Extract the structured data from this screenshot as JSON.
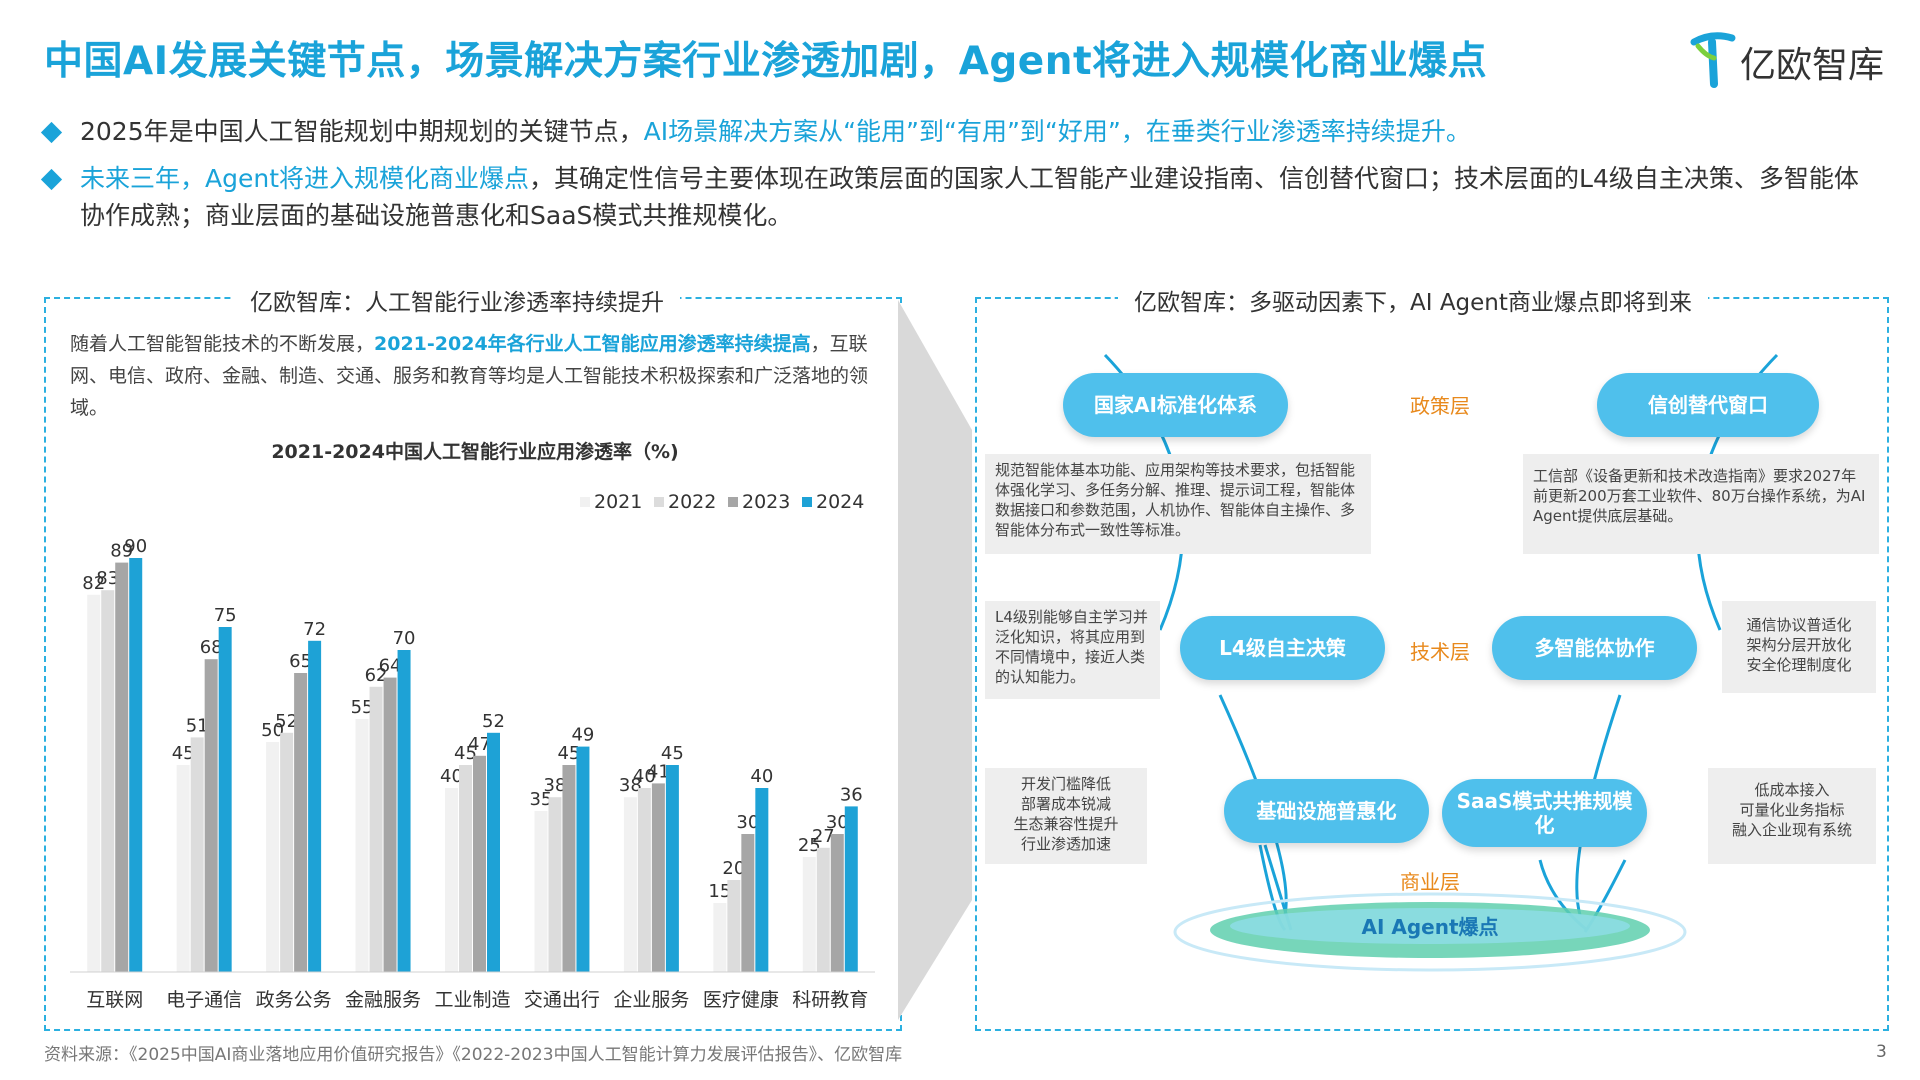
{
  "header": {
    "title": "中国AI发展关键节点，场景解决方案行业渗透加剧，Agent将进入规模化商业爆点",
    "logo_text": "亿欧智库"
  },
  "bullets": [
    {
      "pre": "2025年是中国人工智能规划中期规划的关键节点，",
      "highlight": "AI场景解决方案从“能用”到“有用”到“好用”，在垂类行业渗透率持续提升。",
      "post": ""
    },
    {
      "pre": "",
      "highlight": "未来三年，Agent将进入规模化商业爆点",
      "post": "，其确定性信号主要体现在政策层面的国家人工智能产业建设指南、信创替代窗口；技术层面的L4级自主决策、多智能体协作成熟；商业层面的基础设施普惠化和SaaS模式共推规模化。"
    }
  ],
  "left_panel": {
    "title": "亿欧智库：人工智能行业渗透率持续提升",
    "intro_pre": "随着人工智能智能技术的不断发展，",
    "intro_highlight": "2021-2024年各行业人工智能应用渗透率持续提高",
    "intro_post": "，互联网、电信、政府、金融、制造、交通、服务和教育等均是人工智能技术积极探索和广泛落地的领域。"
  },
  "chart_data": {
    "type": "bar",
    "title": "2021-2024中国人工智能行业应用渗透率（%)",
    "categories": [
      "互联网",
      "电子通信",
      "政务公务",
      "金融服务",
      "工业制造",
      "交通出行",
      "企业服务",
      "医疗健康",
      "科研教育"
    ],
    "series": [
      {
        "name": "2021",
        "color": "#f1f1f1",
        "values": [
          82,
          45,
          50,
          55,
          40,
          35,
          38,
          15,
          25
        ]
      },
      {
        "name": "2022",
        "color": "#dcdcdc",
        "values": [
          83,
          51,
          52,
          62,
          45,
          38,
          40,
          20,
          27
        ]
      },
      {
        "name": "2023",
        "color": "#a6a6a6",
        "values": [
          89,
          68,
          65,
          64,
          47,
          45,
          41,
          30,
          30
        ]
      },
      {
        "name": "2024",
        "color": "#1ea2d6",
        "values": [
          90,
          75,
          72,
          70,
          52,
          49,
          45,
          40,
          36
        ]
      }
    ],
    "ylim": [
      0,
      100
    ],
    "legend": "top-right",
    "grid": false
  },
  "right_panel": {
    "title": "亿欧智库：多驱动因素下，AI Agent商业爆点即将到来",
    "layers": {
      "policy": "政策层",
      "tech": "技术层",
      "business": "商业层"
    },
    "nodes": {
      "national": "国家AI标准化体系",
      "xinchuang": "信创替代窗口",
      "l4": "L4级自主决策",
      "multi_agent": "多智能体协作",
      "infra": "基础设施普惠化",
      "saas": "SaaS模式共推规模化"
    },
    "notes": {
      "national": "规范智能体基本功能、应用架构等技术要求，包括智能体强化学习、多任务分解、推理、提示词工程，智能体数据接口和参数范围，人机协作、智能体自主操作、多智能体分布式一致性等标准。",
      "xinchuang": "工信部《设备更新和技术改造指南》要求2027年前更新200万套工业软件、80万台操作系统，为AI Agent提供底层基础。",
      "l4": "L4级别能够自主学习并泛化知识，将其应用到不同情境中，接近人类的认知能力。",
      "multi_agent": "通信协议普适化\n架构分层开放化\n安全伦理制度化",
      "infra": "开发门槛降低\n部署成本锐减\n生态兼容性提升\n行业渗透加速",
      "saas": "低成本接入\n可量化业务指标\n融入企业现有系统"
    },
    "target": "AI Agent爆点"
  },
  "footer": {
    "source": "资料来源：《2025中国AI商业落地应用价值研究报告》《2022-2023中国人工智能计算力发展评估报告》、亿欧智库",
    "page": "3"
  }
}
